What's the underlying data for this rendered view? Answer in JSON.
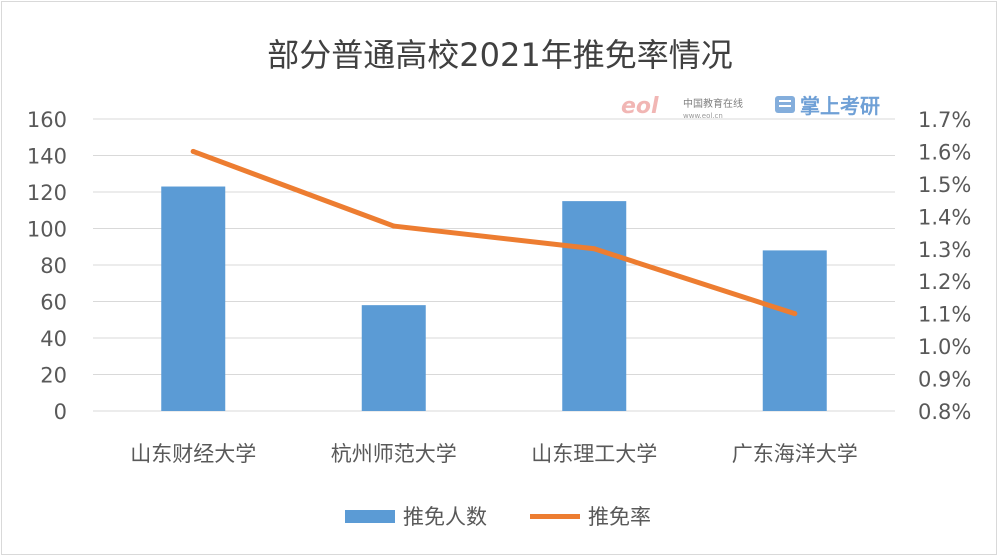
{
  "chart_data": {
    "type": "bar",
    "title": "部分普通高校2021年推免率情况",
    "categories": [
      "山东财经大学",
      "杭州师范大学",
      "山东理工大学",
      "广东海洋大学"
    ],
    "series": [
      {
        "name": "推免人数",
        "type": "bar",
        "axis": "left",
        "color": "#5b9bd5",
        "values": [
          123,
          58,
          115,
          88
        ]
      },
      {
        "name": "推免率",
        "type": "line",
        "axis": "right",
        "color": "#ed7d31",
        "values": [
          1.6,
          1.37,
          1.3,
          1.1
        ]
      }
    ],
    "y_left": {
      "min": 0,
      "max": 160,
      "step": 20,
      "tick_labels": [
        "0",
        "20",
        "40",
        "60",
        "80",
        "100",
        "120",
        "140",
        "160"
      ]
    },
    "y_right": {
      "min": 0.8,
      "max": 1.7,
      "step": 0.1,
      "tick_labels": [
        "0.8%",
        "0.9%",
        "1.0%",
        "1.1%",
        "1.2%",
        "1.3%",
        "1.4%",
        "1.5%",
        "1.6%",
        "1.7%"
      ]
    },
    "grid": true,
    "legend_position": "bottom"
  },
  "watermark": {
    "eol_logo": "eol",
    "eol_cn": "中国教育在线",
    "eol_url": "www.eol.cn",
    "brand": "掌上考研",
    "brand_icon": "book-icon",
    "colors": {
      "eol": "#d9302c",
      "brand": "#6fa0d6"
    }
  }
}
